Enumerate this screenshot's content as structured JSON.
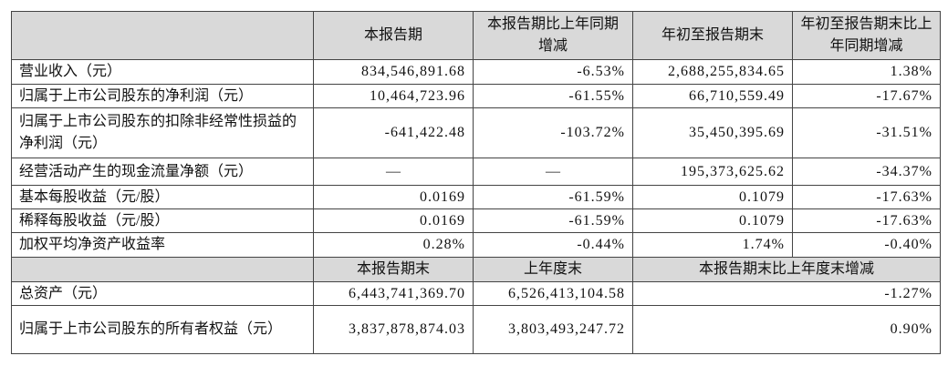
{
  "table": {
    "header": [
      "本报告期",
      "本报告期比上年同期增减",
      "年初至报告期末",
      "年初至报告期末比上年同期增减"
    ],
    "rows": [
      [
        "营业收入（元）",
        "834,546,891.68",
        "-6.53%",
        "2,688,255,834.65",
        "1.38%"
      ],
      [
        "归属于上市公司股东的净利润（元）",
        "10,464,723.96",
        "-61.55%",
        "66,710,559.49",
        "-17.67%"
      ],
      [
        "归属于上市公司股东的扣除非经常性损益的净利润（元）",
        "-641,422.48",
        "-103.72%",
        "35,450,395.69",
        "-31.51%"
      ],
      [
        "经营活动产生的现金流量净额（元）",
        "—",
        "—",
        "195,373,625.62",
        "-34.37%"
      ],
      [
        "基本每股收益（元/股）",
        "0.0169",
        "-61.59%",
        "0.1079",
        "-17.63%"
      ],
      [
        "稀释每股收益（元/股）",
        "0.0169",
        "-61.59%",
        "0.1079",
        "-17.63%"
      ],
      [
        "加权平均净资产收益率",
        "0.28%",
        "-0.44%",
        "1.74%",
        "-0.40%"
      ]
    ],
    "balance_header": [
      "本报告期末",
      "上年度末",
      "本报告期末比上年度末增减"
    ],
    "balance_rows": [
      [
        "总资产（元）",
        "6,443,741,369.70",
        "6,526,413,104.58",
        "-1.27%"
      ],
      [
        "归属于上市公司股东的所有者权益（元）",
        "3,837,878,874.03",
        "3,803,493,247.72",
        "0.90%"
      ]
    ]
  }
}
